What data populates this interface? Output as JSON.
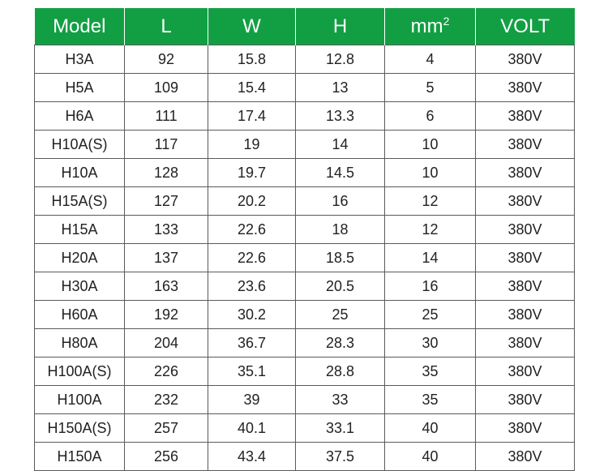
{
  "table": {
    "headers": [
      {
        "label": "Model",
        "sup": ""
      },
      {
        "label": "L",
        "sup": ""
      },
      {
        "label": "W",
        "sup": ""
      },
      {
        "label": "H",
        "sup": ""
      },
      {
        "label": "mm",
        "sup": "2"
      },
      {
        "label": "VOLT",
        "sup": ""
      }
    ],
    "rows": [
      [
        "H3A",
        "92",
        "15.8",
        "12.8",
        "4",
        "380V"
      ],
      [
        "H5A",
        "109",
        "15.4",
        "13",
        "5",
        "380V"
      ],
      [
        "H6A",
        "111",
        "17.4",
        "13.3",
        "6",
        "380V"
      ],
      [
        "H10A(S)",
        "117",
        "19",
        "14",
        "10",
        "380V"
      ],
      [
        "H10A",
        "128",
        "19.7",
        "14.5",
        "10",
        "380V"
      ],
      [
        "H15A(S)",
        "127",
        "20.2",
        "16",
        "12",
        "380V"
      ],
      [
        "H15A",
        "133",
        "22.6",
        "18",
        "12",
        "380V"
      ],
      [
        "H20A",
        "137",
        "22.6",
        "18.5",
        "14",
        "380V"
      ],
      [
        "H30A",
        "163",
        "23.6",
        "20.5",
        "16",
        "380V"
      ],
      [
        "H60A",
        "192",
        "30.2",
        "25",
        "25",
        "380V"
      ],
      [
        "H80A",
        "204",
        "36.7",
        "28.3",
        "30",
        "380V"
      ],
      [
        "H100A(S)",
        "226",
        "35.1",
        "28.8",
        "35",
        "380V"
      ],
      [
        "H100A",
        "232",
        "39",
        "33",
        "35",
        "380V"
      ],
      [
        "H150A(S)",
        "257",
        "40.1",
        "33.1",
        "40",
        "380V"
      ],
      [
        "H150A",
        "256",
        "43.4",
        "37.5",
        "40",
        "380V"
      ]
    ]
  },
  "colors": {
    "header_bg": "#129f44",
    "header_text": "#ffffff",
    "border": "#5a5a5a"
  }
}
